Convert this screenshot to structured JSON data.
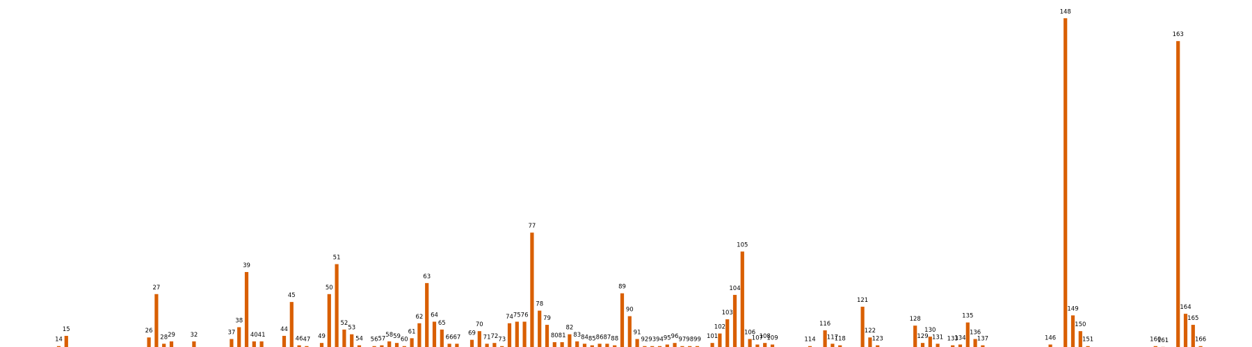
{
  "chart_data": {
    "type": "bar",
    "title": "",
    "xlabel": "",
    "ylabel": "",
    "grid": false,
    "axes_visible": false,
    "bar_color": "#d95f02",
    "ylim": [
      0,
      420
    ],
    "categories": [
      14,
      15,
      26,
      27,
      28,
      29,
      32,
      37,
      38,
      39,
      40,
      41,
      44,
      45,
      46,
      47,
      49,
      50,
      51,
      52,
      53,
      54,
      56,
      57,
      58,
      59,
      60,
      61,
      62,
      63,
      64,
      65,
      66,
      67,
      69,
      70,
      71,
      72,
      73,
      74,
      75,
      76,
      77,
      78,
      79,
      80,
      81,
      82,
      83,
      84,
      85,
      86,
      87,
      88,
      89,
      90,
      91,
      92,
      93,
      94,
      95,
      96,
      97,
      98,
      99,
      101,
      102,
      103,
      104,
      105,
      106,
      107,
      108,
      109,
      114,
      116,
      117,
      118,
      121,
      122,
      123,
      128,
      129,
      130,
      131,
      133,
      134,
      135,
      136,
      137,
      146,
      148,
      149,
      150,
      151,
      160,
      161,
      163,
      164,
      165,
      166
    ],
    "x_positions": [
      14,
      15,
      26,
      27,
      28,
      29,
      32,
      37,
      38,
      39,
      40,
      41,
      44,
      45,
      46,
      47,
      49,
      50,
      51,
      52,
      53,
      54,
      56,
      57,
      58,
      59,
      60,
      61,
      62,
      63,
      64,
      65,
      66,
      67,
      69,
      70,
      71,
      72,
      73,
      74,
      75,
      76,
      77,
      78,
      79,
      80,
      81,
      82,
      83,
      84,
      85,
      86,
      87,
      88,
      89,
      90,
      91,
      92,
      93,
      94,
      95,
      96,
      97,
      98,
      99,
      101,
      102,
      103,
      104,
      105,
      106,
      107,
      108,
      109,
      114,
      116,
      117,
      118,
      121,
      122,
      123,
      128,
      129,
      130,
      131,
      133,
      134,
      135,
      136,
      137,
      146,
      148,
      149,
      150,
      151,
      160,
      161,
      163,
      164,
      165,
      166
    ],
    "values": [
      2,
      15,
      13,
      68,
      5,
      8,
      8,
      11,
      26,
      96,
      8,
      8,
      15,
      58,
      3,
      2,
      6,
      68,
      106,
      23,
      17,
      3,
      2,
      3,
      8,
      6,
      2,
      12,
      31,
      82,
      33,
      23,
      5,
      5,
      10,
      21,
      5,
      6,
      2,
      31,
      33,
      33,
      146,
      47,
      29,
      7,
      7,
      17,
      8,
      5,
      3,
      5,
      5,
      3,
      69,
      40,
      11,
      2,
      2,
      2,
      4,
      6,
      2,
      2,
      2,
      6,
      18,
      36,
      67,
      122,
      11,
      4,
      6,
      4,
      2,
      22,
      5,
      3,
      52,
      13,
      3,
      28,
      6,
      14,
      5,
      3,
      4,
      32,
      11,
      3,
      4,
      418,
      41,
      21,
      2,
      2,
      1,
      389,
      43,
      29,
      2
    ]
  }
}
